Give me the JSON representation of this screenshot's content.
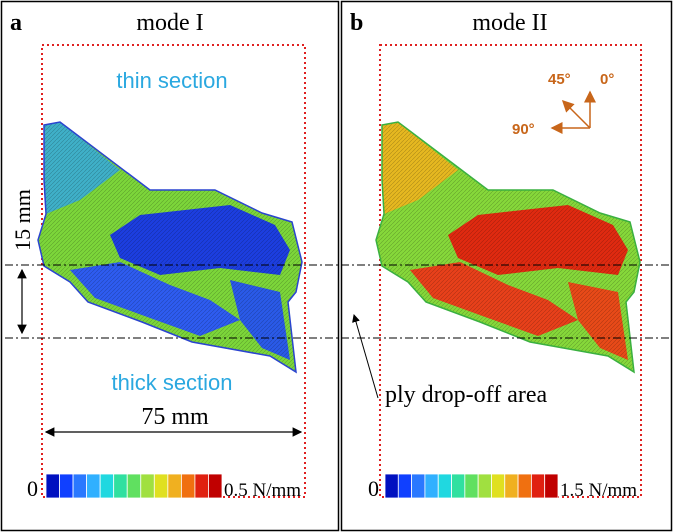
{
  "panel_a": {
    "letter": "a",
    "title": "mode I",
    "thin_label": "thin section",
    "height_label": "15 mm",
    "thick_label": "thick section",
    "width_label": "75 mm",
    "scale_min": "0",
    "scale_max": "0.5 N/mm"
  },
  "panel_b": {
    "letter": "b",
    "title": "mode II",
    "angle_45": "45°",
    "angle_0": "0°",
    "angle_90": "90°",
    "annotation": "ply drop-off area",
    "scale_min": "0",
    "scale_max": "1.5 N/mm"
  }
}
